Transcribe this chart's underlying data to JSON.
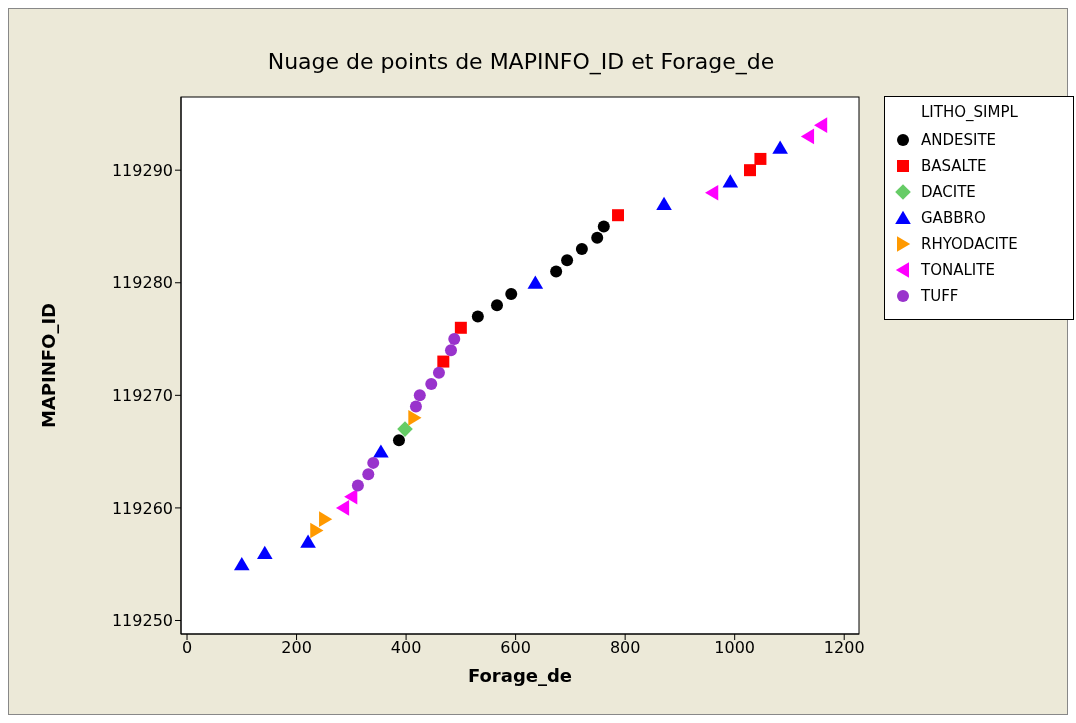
{
  "chart_data": {
    "type": "scatter",
    "title": "Nuage de points de MAPINFO_ID et Forage_de",
    "xlabel": "Forage_de",
    "ylabel": "MAPINFO_ID",
    "legend_title": "LITHO_SIMPL",
    "legend": "right",
    "grid": false,
    "xlim": [
      -11,
      1227
    ],
    "xticks": [
      0,
      200,
      400,
      600,
      800,
      1000,
      1200
    ],
    "ylim": [
      119248.8,
      119296.5
    ],
    "yticks": [
      119250,
      119260,
      119270,
      119280,
      119290
    ],
    "series": [
      {
        "name": "ANDESITE",
        "color": "#000000",
        "marker": "circle",
        "x": [
          387,
          531,
          566,
          592,
          674,
          694,
          721,
          749,
          761
        ],
        "values": [
          119266,
          119277,
          119278,
          119279,
          119281,
          119282,
          119283,
          119284,
          119285
        ]
      },
      {
        "name": "BASALTE",
        "color": "#ff0000",
        "marker": "square",
        "x": [
          468,
          500,
          787,
          1028,
          1047
        ],
        "values": [
          119273,
          119276,
          119286,
          119290,
          119291
        ]
      },
      {
        "name": "DACITE",
        "color": "#66cc66",
        "marker": "diamond",
        "x": [
          398
        ],
        "values": [
          119267
        ]
      },
      {
        "name": "GABBRO",
        "color": "#0000ff",
        "marker": "triangle",
        "x": [
          100,
          142,
          221,
          354,
          636,
          871,
          992,
          1083
        ],
        "values": [
          119255,
          119256,
          119257,
          119265,
          119280,
          119287,
          119289,
          119292
        ]
      },
      {
        "name": "RHYODACITE",
        "color": "#ff9900",
        "marker": "triangle-right",
        "x": [
          236,
          252,
          415
        ],
        "values": [
          119258,
          119259,
          119268
        ]
      },
      {
        "name": "TONALITE",
        "color": "#ff00ff",
        "marker": "triangle-left",
        "x": [
          285,
          300,
          959,
          1134,
          1158
        ],
        "values": [
          119260,
          119261,
          119288,
          119293,
          119294
        ]
      },
      {
        "name": "TUFF",
        "color": "#9933cc",
        "marker": "circle",
        "x": [
          312,
          331,
          340,
          418,
          425,
          446,
          460,
          482,
          488
        ],
        "values": [
          119262,
          119263,
          119264,
          119269,
          119270,
          119271,
          119272,
          119274,
          119275
        ]
      }
    ]
  }
}
